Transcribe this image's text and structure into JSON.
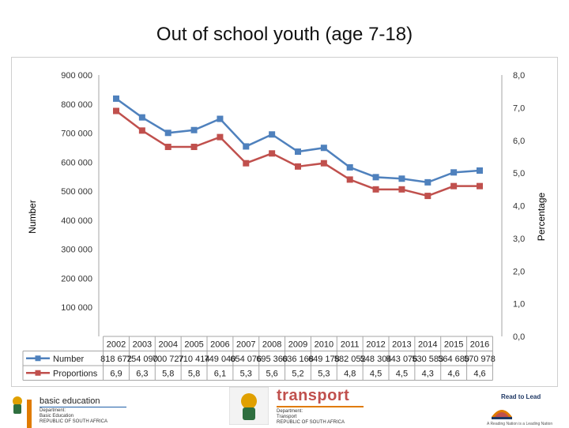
{
  "slide": {
    "title": "Out of school youth (age 7-18)"
  },
  "chart_data": {
    "type": "line",
    "x": [
      "2002",
      "2003",
      "2004",
      "2005",
      "2006",
      "2007",
      "2008",
      "2009",
      "2010",
      "2011",
      "2012",
      "2013",
      "2014",
      "2015",
      "2016"
    ],
    "series": [
      {
        "name": "Number",
        "axis": "left",
        "color": "#4f81bd",
        "values": [
          818672,
          754090,
          700727,
          710414,
          749040,
          654076,
          695360,
          636168,
          649178,
          582052,
          548304,
          543076,
          530583,
          564680,
          570978
        ],
        "labels": [
          "818 672",
          "754 090",
          "700 727",
          "710 414",
          "749 040",
          "654 076",
          "695 360",
          "636 168",
          "649 178",
          "582 052",
          "548 304",
          "543 076",
          "530 583",
          "564 680",
          "570 978"
        ]
      },
      {
        "name": "Proportions",
        "axis": "right",
        "color": "#c0504d",
        "values": [
          6.9,
          6.3,
          5.8,
          5.8,
          6.1,
          5.3,
          5.6,
          5.2,
          5.3,
          4.8,
          4.5,
          4.5,
          4.3,
          4.6,
          4.6
        ],
        "labels": [
          "6,9",
          "6,3",
          "5,8",
          "5,8",
          "6,1",
          "5,3",
          "5,6",
          "5,2",
          "5,3",
          "4,8",
          "4,5",
          "4,5",
          "4,3",
          "4,6",
          "4,6"
        ]
      }
    ],
    "ylabel": "Number",
    "y2label": "Percentage",
    "ylim": [
      0,
      900000
    ],
    "y2lim": [
      0,
      8
    ],
    "yticks": [
      "100 000",
      "200 000",
      "300 000",
      "400 000",
      "500 000",
      "600 000",
      "700 000",
      "800 000",
      "900 000"
    ],
    "y2ticks": [
      "0,0",
      "1,0",
      "2,0",
      "3,0",
      "4,0",
      "5,0",
      "6,0",
      "7,0",
      "8,0"
    ],
    "grid": false,
    "legend": "data-table-below"
  },
  "footer": {
    "basic_education": {
      "name": "basic education",
      "dept": "Department:",
      "dept_name": "Basic Education",
      "country": "REPUBLIC OF SOUTH AFRICA"
    },
    "transport": {
      "name": "transport",
      "dept": "Department:",
      "dept_name": "Transport",
      "country": "REPUBLIC OF SOUTH AFRICA"
    },
    "read_to_lead": {
      "name": "Read to Lead",
      "tagline": "A Reading Nation is a Leading Nation"
    },
    "colors": {
      "be_accent": "#1f5fa8",
      "transport_red": "#c0504d",
      "rl_orange": "#e07b00"
    }
  }
}
